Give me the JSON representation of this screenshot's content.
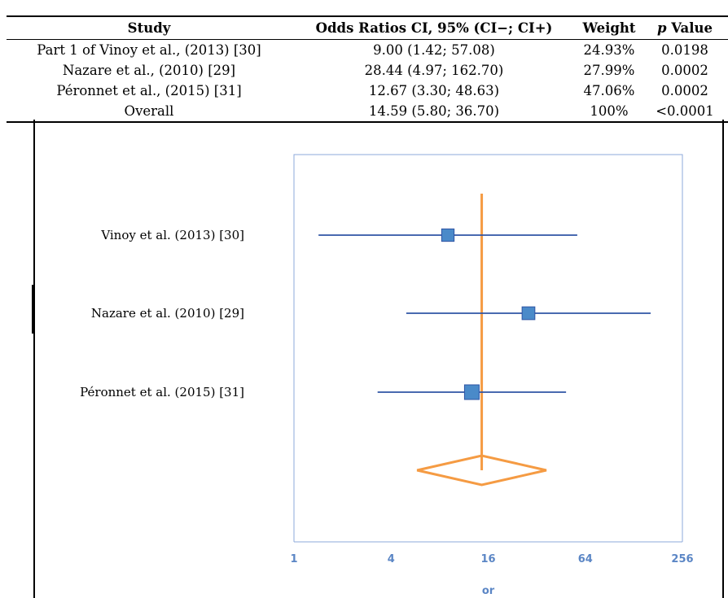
{
  "table": {
    "headers": {
      "study": "Study",
      "odds": "Odds Ratios CI, 95% (CI−; CI+)",
      "weight": "Weight",
      "p_italic": "p",
      "p_rest": " Value"
    },
    "rows": [
      {
        "study": "Part 1 of Vinoy et al., (2013) [30]",
        "or": "9.00 (1.42; 57.08)",
        "weight": "24.93%",
        "p": "0.0198"
      },
      {
        "study": "Nazare et al., (2010) [29]",
        "or": "28.44 (4.97; 162.70)",
        "weight": "27.99%",
        "p": "0.0002"
      },
      {
        "study": "Péronnet et al., (2015) [31]",
        "or": "12.67 (3.30; 48.63)",
        "weight": "47.06%",
        "p": "0.0002"
      },
      {
        "study": "Overall",
        "or": "14.59 (5.80; 36.70)",
        "weight": "100%",
        "p": "<0.0001"
      }
    ]
  },
  "chart_data": {
    "type": "scatter",
    "subtype": "forest-plot",
    "x_scale": "log2",
    "xlim": [
      1,
      256
    ],
    "x_ticks": [
      "1",
      "4",
      "16",
      "64",
      "256"
    ],
    "xlabel": "or",
    "studies": [
      {
        "label": "Vinoy et al. (2013) [30]",
        "or": 9.0,
        "ci_low": 1.42,
        "ci_high": 57.08,
        "weight": 24.93
      },
      {
        "label": "Nazare et al. (2010) [29]",
        "or": 28.44,
        "ci_low": 4.97,
        "ci_high": 162.7,
        "weight": 27.99
      },
      {
        "label": "Péronnet et al. (2015) [31]",
        "or": 12.67,
        "ci_low": 3.3,
        "ci_high": 48.63,
        "weight": 47.06
      }
    ],
    "overall": {
      "or": 14.59,
      "ci_low": 5.8,
      "ci_high": 36.7
    },
    "colors": {
      "study_line": "#2f54a4",
      "study_marker": "#4a8ac9",
      "overall": "#f59b43",
      "axis": "#8eaadb",
      "tick_text": "#5b86c5"
    }
  }
}
